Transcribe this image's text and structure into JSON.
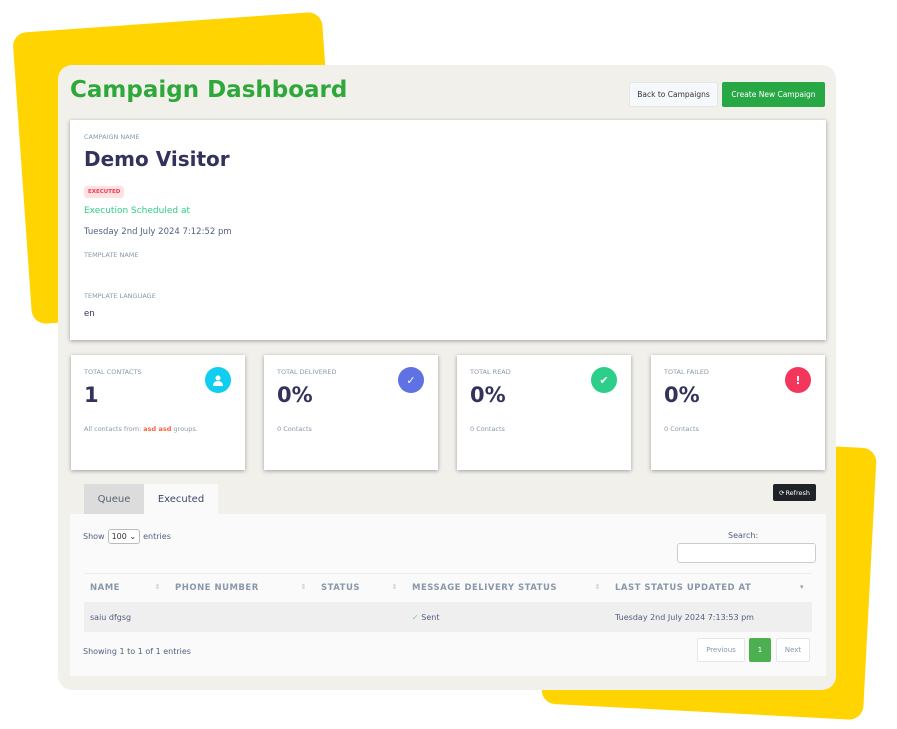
{
  "header": {
    "title": "Campaign Dashboard",
    "back_label": "Back to Campaigns",
    "create_label": "Create New Campaign"
  },
  "campaign": {
    "name_label": "CAMPAIGN NAME",
    "name": "Demo Visitor",
    "status_badge": "EXECUTED",
    "scheduled_label": "Execution Scheduled at",
    "scheduled_at": "Tuesday 2nd July 2024 7:12:52 pm",
    "template_name_label": "TEMPLATE NAME",
    "template_name": "",
    "template_language_label": "TEMPLATE LANGUAGE",
    "template_language": "en"
  },
  "stats": [
    {
      "label": "TOTAL CONTACTS",
      "value": "1",
      "sub_prefix": "All contacts from: ",
      "sub_highlight": "asd asd",
      "sub_suffix": " groups.",
      "icon": "user-icon",
      "color": "#11cdef"
    },
    {
      "label": "TOTAL DELIVERED",
      "value": "0%",
      "sub": "0 Contacts",
      "icon": "check-icon",
      "color": "#5e72e4"
    },
    {
      "label": "TOTAL READ",
      "value": "0%",
      "sub": "0 Contacts",
      "icon": "double-check-icon",
      "color": "#2dce89"
    },
    {
      "label": "TOTAL FAILED",
      "value": "0%",
      "sub": "0 Contacts",
      "icon": "exclamation-icon",
      "color": "#f5365c"
    }
  ],
  "tabs": [
    {
      "label": "Queue"
    },
    {
      "label": "Executed",
      "active": true
    }
  ],
  "refresh_label": "Refresh",
  "table": {
    "show_label": "Show",
    "entries_value": "100",
    "entries_label": "entries",
    "search_label": "Search:",
    "search_value": "",
    "columns": [
      "NAME",
      "PHONE NUMBER",
      "STATUS",
      "MESSAGE DELIVERY STATUS",
      "LAST STATUS UPDATED AT"
    ],
    "rows": [
      {
        "name": "saiu dfgsg",
        "phone": "",
        "status": "",
        "delivery": "Sent",
        "updated": "Tuesday 2nd July 2024 7:13:53 pm"
      }
    ],
    "info": "Showing 1 to 1 of 1 entries",
    "prev_label": "Previous",
    "page": "1",
    "next_label": "Next"
  }
}
